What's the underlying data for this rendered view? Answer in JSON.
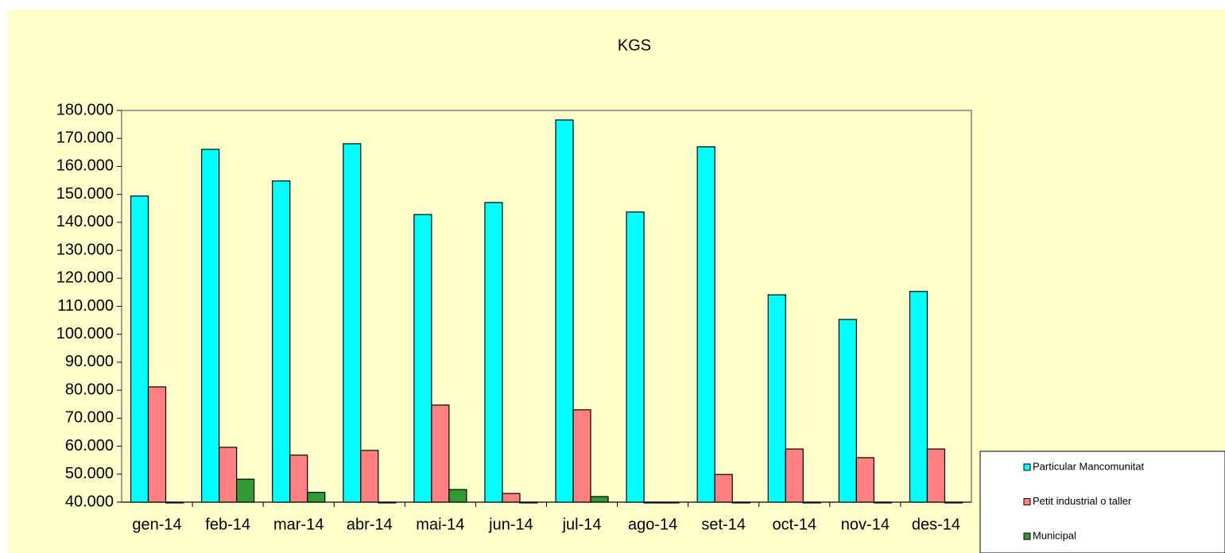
{
  "chart_data": {
    "type": "bar",
    "title": "KGS",
    "categories": [
      "gen-14",
      "feb-14",
      "mar-14",
      "abr-14",
      "mai-14",
      "jun-14",
      "jul-14",
      "ago-14",
      "set-14",
      "oct-14",
      "nov-14",
      "des-14"
    ],
    "series": [
      {
        "name": "Particular Mancomunitat",
        "color": "#00ffff",
        "values": [
          149400,
          166100,
          154800,
          168100,
          142800,
          147100,
          176600,
          143700,
          167000,
          114100,
          105300,
          115300
        ]
      },
      {
        "name": "Petit industrial o taller",
        "color": "#ff8080",
        "values": [
          81200,
          59600,
          56800,
          58500,
          74700,
          43100,
          73000,
          40000,
          49900,
          59000,
          55900,
          59000
        ]
      },
      {
        "name": "Municipal",
        "color": "#339933",
        "values": [
          40000,
          48200,
          43500,
          40000,
          44500,
          40000,
          42000,
          40000,
          40000,
          40000,
          40000,
          40000
        ]
      }
    ],
    "ylim": [
      40000,
      180000
    ],
    "yticks": [
      {
        "value": 40000,
        "label": "40.000"
      },
      {
        "value": 50000,
        "label": "50.000"
      },
      {
        "value": 60000,
        "label": "60.000"
      },
      {
        "value": 70000,
        "label": "70.000"
      },
      {
        "value": 80000,
        "label": "80.000"
      },
      {
        "value": 90000,
        "label": "90.000"
      },
      {
        "value": 100000,
        "label": "100.000"
      },
      {
        "value": 110000,
        "label": "110.000"
      },
      {
        "value": 120000,
        "label": "120.000"
      },
      {
        "value": 130000,
        "label": "130.000"
      },
      {
        "value": 140000,
        "label": "140.000"
      },
      {
        "value": 150000,
        "label": "150.000"
      },
      {
        "value": 160000,
        "label": "160.000"
      },
      {
        "value": 170000,
        "label": "170.000"
      },
      {
        "value": 180000,
        "label": "180.000"
      }
    ],
    "legend": "bottom-right"
  }
}
